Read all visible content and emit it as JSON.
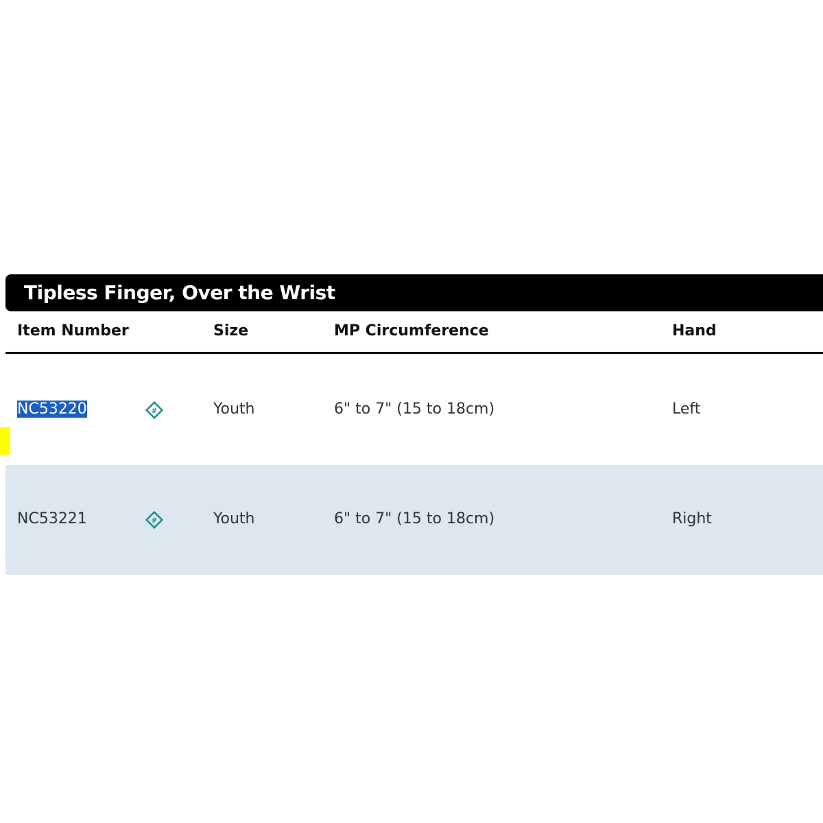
{
  "table": {
    "title": "Tipless Finger, Over the Wrist",
    "headers": [
      "Item Number",
      "Size",
      "MP Circumference",
      "Hand"
    ],
    "rows": [
      {
        "item": "NC53220",
        "icon": "rx-diamond-icon",
        "size": "Youth",
        "circumference": "6\" to 7\" (15 to 18cm)",
        "hand": "Left",
        "selected": true
      },
      {
        "item": "NC53221",
        "icon": "rx-diamond-icon",
        "size": "Youth",
        "circumference": "6\" to 7\" (15 to 18cm)",
        "hand": "Right",
        "selected": false
      }
    ]
  },
  "colors": {
    "title_bg": "#000000",
    "alt_row": "#dde7f0",
    "icon": "#1a8f8a",
    "selection": "#1a5fc1",
    "marker": "#ffff00"
  }
}
